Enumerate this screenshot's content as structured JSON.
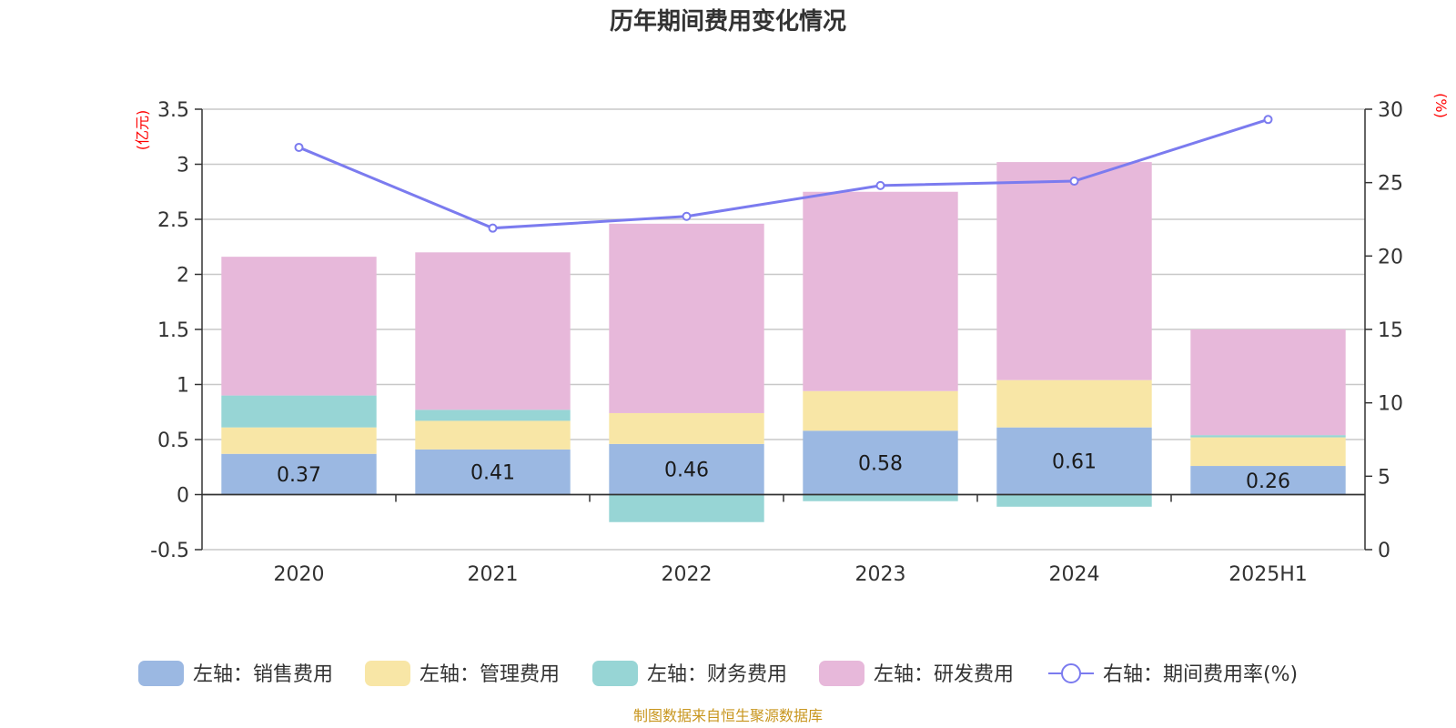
{
  "chart_data": {
    "type": "bar",
    "title": "历年期间费用变化情况",
    "categories": [
      "2020",
      "2021",
      "2022",
      "2023",
      "2024",
      "2025H1"
    ],
    "left_axis": {
      "unit": "(亿元)",
      "ylim": [
        -0.5,
        3.5
      ],
      "ticks": [
        -0.5,
        0,
        0.5,
        1,
        1.5,
        2,
        2.5,
        3,
        3.5
      ],
      "tick_labels": [
        "-0.5",
        "0",
        "0.5",
        "1",
        "1.5",
        "2",
        "2.5",
        "3",
        "3.5"
      ]
    },
    "right_axis": {
      "unit": "(%)",
      "ylim": [
        0,
        30
      ],
      "ticks": [
        0,
        5,
        10,
        15,
        20,
        25,
        30
      ],
      "tick_labels": [
        "0",
        "5",
        "10",
        "15",
        "20",
        "25",
        "30"
      ]
    },
    "stacked": true,
    "series": [
      {
        "name": "左轴：销售费用",
        "axis": "left",
        "color": "#9bb8e2",
        "values": [
          0.37,
          0.41,
          0.46,
          0.58,
          0.61,
          0.26
        ],
        "labels": [
          "0.37",
          "0.41",
          "0.46",
          "0.58",
          "0.61",
          "0.26"
        ]
      },
      {
        "name": "左轴：管理费用",
        "axis": "left",
        "color": "#f8e6a6",
        "values": [
          0.24,
          0.26,
          0.28,
          0.36,
          0.43,
          0.26
        ]
      },
      {
        "name": "左轴：财务费用",
        "axis": "left",
        "color": "#97d5d5",
        "values": [
          0.29,
          0.1,
          -0.25,
          -0.06,
          -0.11,
          0.02
        ]
      },
      {
        "name": "左轴：研发费用",
        "axis": "left",
        "color": "#e7b8da",
        "values": [
          1.26,
          1.43,
          1.72,
          1.81,
          1.98,
          0.96
        ]
      },
      {
        "name": "右轴：期间费用率(%)",
        "axis": "right",
        "type": "line",
        "color": "#7b7bef",
        "values": [
          27.4,
          21.9,
          22.7,
          24.8,
          25.1,
          29.3
        ]
      }
    ],
    "grid": true,
    "legend_position": "bottom"
  },
  "source": "制图数据来自恒生聚源数据库"
}
